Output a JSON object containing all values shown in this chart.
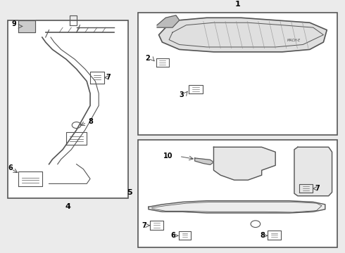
{
  "bg_color": "#ebebeb",
  "line_color": "#555555",
  "fill_light": "#d8d8d8",
  "fill_white": "#ffffff"
}
